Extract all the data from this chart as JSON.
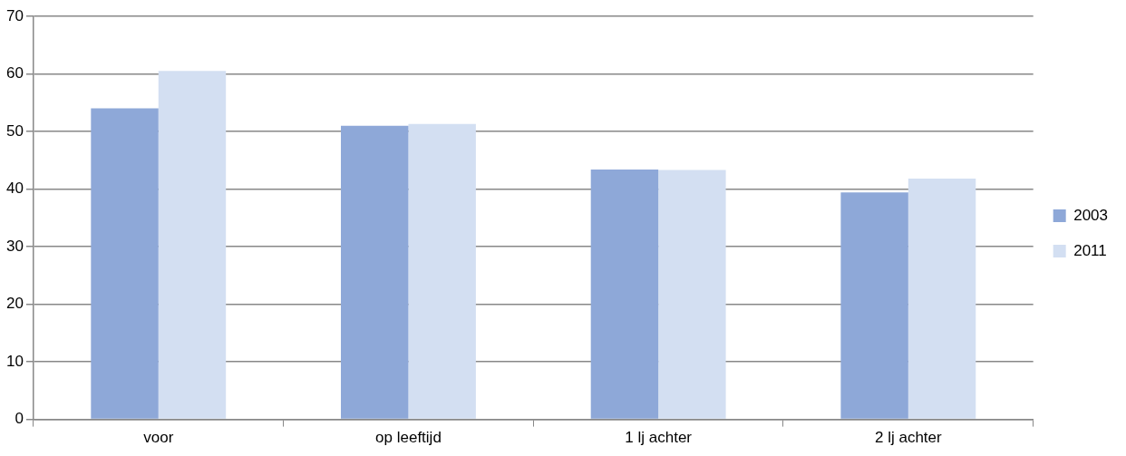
{
  "chart_data": {
    "type": "bar",
    "categories": [
      "voor",
      "op leeftijd",
      "1 lj achter",
      "2 lj achter"
    ],
    "series": [
      {
        "name": "2003",
        "color": "#8ea8d8",
        "values": [
          54,
          51,
          43.4,
          39.4
        ]
      },
      {
        "name": "2011",
        "color": "#d3dff2",
        "values": [
          60.5,
          51.3,
          43.3,
          41.8
        ]
      }
    ],
    "ylim": [
      0,
      70
    ],
    "yticks": [
      0,
      10,
      20,
      30,
      40,
      50,
      60,
      70
    ],
    "grid": "y",
    "legend": "right"
  }
}
